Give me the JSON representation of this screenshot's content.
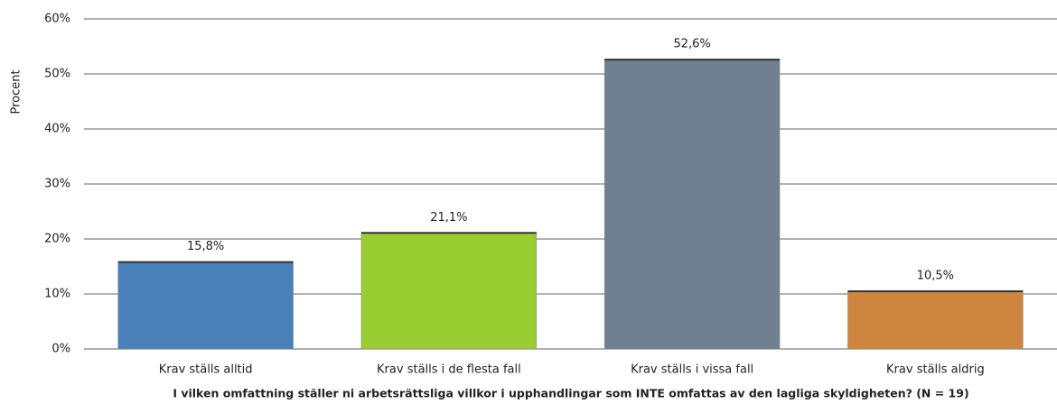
{
  "chart_data": {
    "type": "bar",
    "y_label": "Procent",
    "x_label": "I vilken omfattning ställer ni arbetsrättsliga villkor i upphandlingar som INTE omfattas av den lagliga skyldigheten? (N = 19)",
    "categories": [
      "Krav ställs alltid",
      "Krav ställs i de flesta fall",
      "Krav ställs i vissa fall",
      "Krav ställs aldrig"
    ],
    "values": [
      15.8,
      21.1,
      52.6,
      10.5
    ],
    "value_labels": [
      "15,8%",
      "21,1%",
      "52,6%",
      "10,5%"
    ],
    "colors": [
      "#4a80b8",
      "#9acd32",
      "#708090",
      "#cd853f"
    ],
    "ylim": [
      0,
      60
    ],
    "yticks": [
      {
        "value": 0,
        "label": "0%"
      },
      {
        "value": 10,
        "label": "10%"
      },
      {
        "value": 20,
        "label": "20%"
      },
      {
        "value": 30,
        "label": "30%"
      },
      {
        "value": 40,
        "label": "40%"
      },
      {
        "value": 50,
        "label": "50%"
      },
      {
        "value": 60,
        "label": "60%"
      }
    ],
    "grid": true
  }
}
